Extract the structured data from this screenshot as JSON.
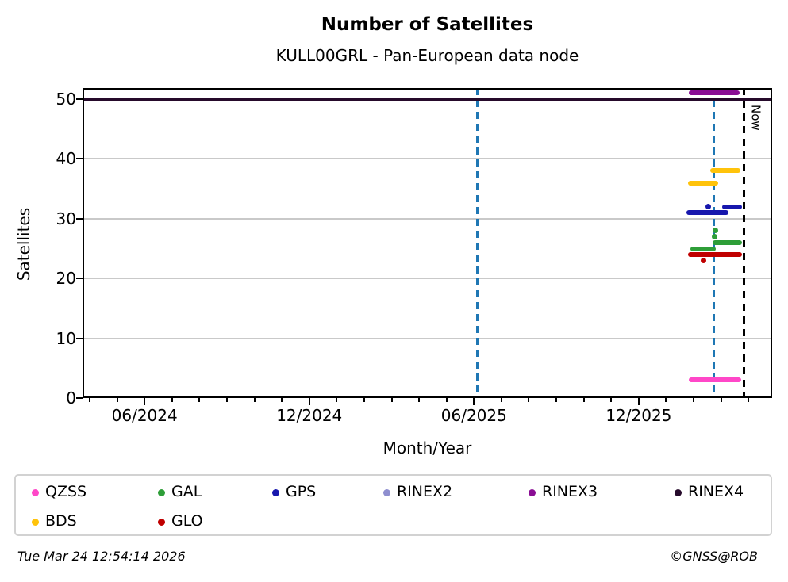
{
  "title": "Number of Satellites",
  "subtitle": "KULL00GRL - Pan-European data node",
  "now_label": "Now",
  "footer": {
    "timestamp": "Tue Mar 24 12:54:14 2026",
    "credit": "©GNSS@ROB"
  },
  "colors": {
    "QZSS": "#ff47c8",
    "GAL": "#2e9e38",
    "GPS": "#1717ad",
    "RINEX2": "#8e8ecf",
    "RINEX3": "#8a0d94",
    "RINEX4": "#260a2b",
    "BDS": "#ffc30b",
    "GLO": "#c00000",
    "ref_line_blue": "#1f77b4",
    "now_line": "#000000",
    "grid": "#c9c9c9"
  },
  "chart_data": {
    "type": "line",
    "title": "Number of Satellites",
    "subtitle": "KULL00GRL - Pan-European data node",
    "xlabel": "Month/Year",
    "ylabel": "Satellites",
    "x_unit": "months since 2024-01-01",
    "xlim": [
      2.74,
      27.86
    ],
    "ylim": [
      0,
      51.86
    ],
    "grid": true,
    "x_ticks": [
      {
        "m": 5,
        "label": "06/2024"
      },
      {
        "m": 11,
        "label": "12/2024"
      },
      {
        "m": 17,
        "label": "06/2025"
      },
      {
        "m": 23,
        "label": "12/2025"
      }
    ],
    "x_minor_ticks_from": 3,
    "x_minor_ticks_to": 27,
    "y_ticks": [
      0,
      10,
      20,
      30,
      40,
      50
    ],
    "ref_lines_blue_dashed": [
      {
        "m": 17.13
      },
      {
        "m": 25.74
      }
    ],
    "now_line": {
      "m": 26.84,
      "label": "Now"
    },
    "series": [
      {
        "name": "RINEX4",
        "lw": 4,
        "square": true,
        "segments": [
          {
            "x0": 2.74,
            "x1": 27.86,
            "y": 50
          }
        ],
        "points": []
      },
      {
        "name": "RINEX3",
        "lw": 6,
        "segments": [
          {
            "x0": 24.82,
            "x1": 26.67,
            "y": 51
          }
        ],
        "points": []
      },
      {
        "name": "RINEX2",
        "lw": 6,
        "segments": [],
        "points": []
      },
      {
        "name": "BDS",
        "lw": 6,
        "segments": [
          {
            "x0": 24.79,
            "x1": 25.89,
            "y": 36
          },
          {
            "x0": 25.6,
            "x1": 26.7,
            "y": 38
          }
        ],
        "points": []
      },
      {
        "name": "GPS",
        "lw": 6,
        "segments": [
          {
            "x0": 24.73,
            "x1": 26.27,
            "y": 31
          },
          {
            "x0": 26.04,
            "x1": 26.76,
            "y": 32
          }
        ],
        "points": [
          {
            "x": 25.54,
            "y": 32
          }
        ]
      },
      {
        "name": "GAL",
        "lw": 6,
        "segments": [
          {
            "x0": 24.88,
            "x1": 25.8,
            "y": 25
          },
          {
            "x0": 25.69,
            "x1": 26.76,
            "y": 26
          }
        ],
        "points": [
          {
            "x": 25.77,
            "y": 27
          },
          {
            "x": 25.8,
            "y": 28
          }
        ]
      },
      {
        "name": "GLO",
        "lw": 6,
        "segments": [
          {
            "x0": 24.79,
            "x1": 26.76,
            "y": 24
          }
        ],
        "points": [
          {
            "x": 25.37,
            "y": 23
          }
        ]
      },
      {
        "name": "QZSS",
        "lw": 6,
        "segments": [
          {
            "x0": 24.82,
            "x1": 26.73,
            "y": 3
          }
        ],
        "points": []
      }
    ],
    "legend": {
      "position": "bottom",
      "entries": [
        "QZSS",
        "GAL",
        "GPS",
        "RINEX2",
        "RINEX3",
        "RINEX4",
        "BDS",
        "GLO"
      ]
    }
  }
}
